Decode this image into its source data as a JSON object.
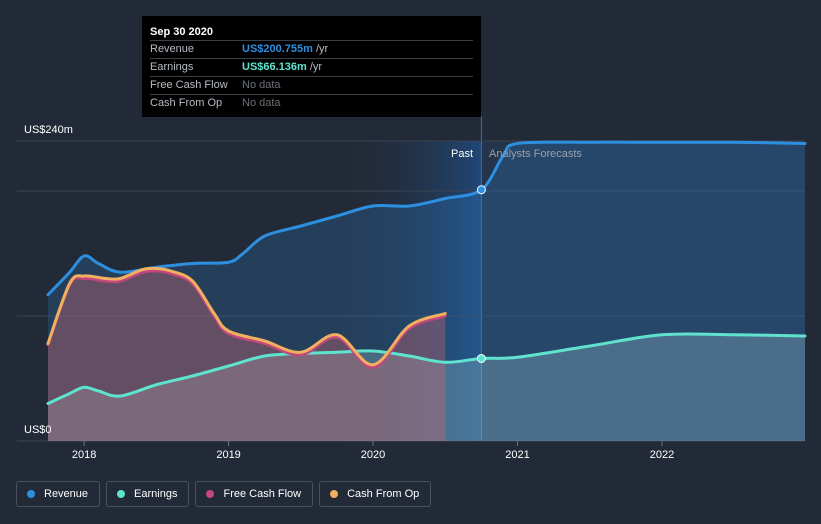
{
  "tooltip": {
    "date": "Sep 30 2020",
    "rows": [
      {
        "label": "Revenue",
        "value": "US$200.755m",
        "unit": "/yr",
        "color": "#2d8fe0"
      },
      {
        "label": "Earnings",
        "value": "US$66.136m",
        "unit": "/yr",
        "color": "#5fe3cf"
      },
      {
        "label": "Free Cash Flow",
        "value": "No data",
        "unit": "",
        "color": ""
      },
      {
        "label": "Cash From Op",
        "value": "No data",
        "unit": "",
        "color": ""
      }
    ]
  },
  "labels": {
    "past": "Past",
    "forecast": "Analysts Forecasts"
  },
  "legend": [
    {
      "label": "Revenue",
      "color": "#2d8fe0"
    },
    {
      "label": "Earnings",
      "color": "#5fe3cf"
    },
    {
      "label": "Free Cash Flow",
      "color": "#c2477c"
    },
    {
      "label": "Cash From Op",
      "color": "#f0b060"
    }
  ],
  "chart_data": {
    "type": "area",
    "ylabels": [
      "US$240m",
      "US$0"
    ],
    "ylim": [
      0,
      240
    ],
    "xlim": [
      2017.75,
      2022.99
    ],
    "xticks": [
      2018,
      2019,
      2020,
      2021,
      2022
    ],
    "xtick_labels": [
      "2018",
      "2019",
      "2020",
      "2021",
      "2022"
    ],
    "now": 2020.75,
    "series": [
      {
        "name": "Revenue",
        "color": "#2d8fe0",
        "x": [
          2017.75,
          2017.9,
          2018.0,
          2018.1,
          2018.25,
          2018.5,
          2018.75,
          2019.0,
          2019.1,
          2019.25,
          2019.5,
          2019.75,
          2020.0,
          2020.25,
          2020.5,
          2020.75,
          2020.9,
          2021.0,
          2021.5,
          2022.0,
          2022.5,
          2022.99
        ],
        "y": [
          117,
          135,
          148,
          142,
          135,
          139,
          142,
          143,
          150,
          164,
          172,
          180,
          188,
          188,
          194,
          201,
          228,
          238,
          239,
          239,
          239,
          238
        ]
      },
      {
        "name": "Earnings",
        "color": "#5fe3cf",
        "x": [
          2017.75,
          2017.9,
          2018.0,
          2018.1,
          2018.25,
          2018.5,
          2018.75,
          2019.0,
          2019.25,
          2019.5,
          2019.75,
          2020.0,
          2020.25,
          2020.5,
          2020.75,
          2021.0,
          2021.5,
          2022.0,
          2022.5,
          2022.99
        ],
        "y": [
          30,
          38,
          43,
          40,
          36,
          45,
          52,
          60,
          68,
          70,
          71,
          72,
          68,
          63,
          66,
          67,
          76,
          85,
          85,
          84
        ]
      },
      {
        "name": "Free Cash Flow",
        "color": "#c2477c",
        "x": [
          2017.75,
          2017.9,
          2018.0,
          2018.15,
          2018.25,
          2018.4,
          2018.5,
          2018.6,
          2018.75,
          2018.9,
          2019.0,
          2019.25,
          2019.5,
          2019.75,
          2020.0,
          2020.25,
          2020.5
        ],
        "y": [
          77,
          125,
          130,
          128,
          128,
          135,
          136,
          134,
          126,
          100,
          86,
          78,
          69,
          83,
          59,
          90,
          100
        ]
      },
      {
        "name": "Cash From Op",
        "color": "#f0b060",
        "x": [
          2017.75,
          2017.9,
          2018.0,
          2018.15,
          2018.25,
          2018.4,
          2018.5,
          2018.6,
          2018.75,
          2018.9,
          2019.0,
          2019.25,
          2019.5,
          2019.75,
          2020.0,
          2020.25,
          2020.5
        ],
        "y": [
          78,
          126,
          132,
          130,
          130,
          137,
          138,
          136,
          128,
          102,
          88,
          80,
          71,
          85,
          61,
          92,
          102
        ]
      }
    ]
  }
}
